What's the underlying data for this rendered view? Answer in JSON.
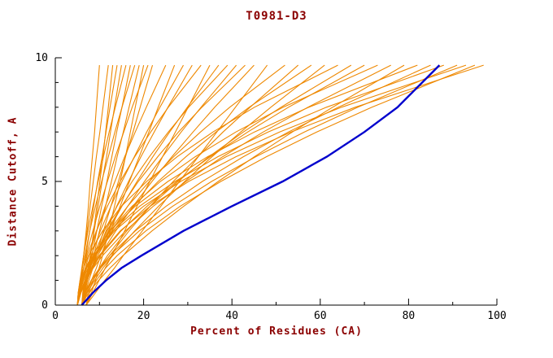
{
  "chart_data": {
    "type": "line",
    "title": "T0981-D3",
    "xlabel": "Percent of Residues (CA)",
    "ylabel": "Distance Cutoff, A",
    "xlim": [
      0,
      100
    ],
    "ylim": [
      0,
      10
    ],
    "x_major_ticks": [
      0,
      20,
      40,
      60,
      80,
      100
    ],
    "x_minor_tick_step": 10,
    "y_major_ticks": [
      0,
      5,
      10
    ],
    "y_minor_tick_step": 1,
    "grid": false,
    "legend": "none",
    "colors": {
      "curves": "#ee8800",
      "highlight": "#0000cd",
      "axis": "#000000",
      "tick_text": "#000000",
      "label_text": "#8b0000"
    },
    "y_grid": [
      0,
      0.5,
      1,
      1.5,
      2,
      3,
      4,
      5,
      6,
      7,
      8,
      9.7
    ],
    "orange_curves": [
      [
        5,
        5.5,
        5.8,
        6.1,
        6.4,
        7,
        7.5,
        7.9,
        8.4,
        8.9,
        9.3,
        10
      ],
      [
        5,
        5.4,
        5.7,
        6.1,
        6.4,
        7.2,
        7.9,
        8.6,
        9.3,
        10.1,
        10.8,
        12
      ],
      [
        6,
        6.7,
        7.1,
        7.6,
        8,
        8.7,
        9.4,
        10.1,
        10.8,
        11.4,
        12,
        13
      ],
      [
        5,
        5.5,
        5.9,
        6.4,
        6.9,
        7.8,
        8.7,
        9.6,
        10.6,
        11.5,
        12.4,
        14
      ],
      [
        6,
        6.5,
        6.9,
        7.4,
        7.9,
        8.8,
        9.7,
        10.6,
        11.6,
        12.5,
        13.4,
        15
      ],
      [
        5,
        5.2,
        5.6,
        6,
        6.4,
        7.4,
        8.5,
        9.7,
        10.9,
        12.2,
        13.6,
        16
      ],
      [
        6,
        6.6,
        7.1,
        7.7,
        8.3,
        9.4,
        10.5,
        11.7,
        12.8,
        13.9,
        15.1,
        17
      ],
      [
        5,
        5.3,
        5.7,
        6.1,
        6.7,
        7.8,
        9.1,
        10.5,
        12,
        13.5,
        15.1,
        18
      ],
      [
        6,
        6.7,
        7.3,
        8,
        8.7,
        10,
        11.4,
        12.7,
        14,
        15.4,
        16.7,
        19
      ],
      [
        7,
        8.2,
        9.1,
        9.9,
        10.7,
        12.1,
        13.4,
        14.7,
        15.9,
        17,
        18.1,
        20
      ],
      [
        5,
        5.3,
        5.8,
        6.4,
        7,
        8.5,
        10.1,
        11.8,
        13.6,
        15.5,
        17.4,
        21
      ],
      [
        6,
        6.8,
        7.6,
        8.5,
        9.3,
        10.9,
        12.6,
        14.3,
        15.9,
        17.6,
        19.2,
        22
      ],
      [
        5,
        5.4,
        6,
        6.8,
        7.6,
        9.4,
        11.3,
        13.5,
        15.7,
        18.1,
        20.6,
        25
      ],
      [
        6,
        7.1,
        8.2,
        9.3,
        10.3,
        12.5,
        14.7,
        16.8,
        19,
        21.2,
        23.3,
        27
      ],
      [
        5,
        5.5,
        6.2,
        7.1,
        8.1,
        10.2,
        12.6,
        15.1,
        17.9,
        20.7,
        23.7,
        29
      ],
      [
        6,
        6.5,
        7.3,
        8.2,
        9.2,
        11.5,
        13.9,
        16.6,
        19.4,
        22.4,
        25.5,
        31
      ],
      [
        5,
        5.3,
        5.7,
        6.4,
        7.2,
        9.3,
        11.8,
        14.7,
        18,
        21.6,
        25.6,
        33
      ],
      [
        7,
        8.5,
        9.9,
        11.3,
        12.8,
        15.7,
        18.5,
        21.4,
        24.3,
        27.2,
        30.1,
        35
      ],
      [
        5,
        5.7,
        6.7,
        7.8,
        9.1,
        12,
        15.1,
        18.5,
        22.1,
        25.9,
        29.9,
        37
      ],
      [
        6,
        6.3,
        6.9,
        7.7,
        8.6,
        11.1,
        14,
        17.4,
        21.3,
        25.6,
        30.2,
        39
      ],
      [
        5,
        5.8,
        6.9,
        8.2,
        9.6,
        12.8,
        16.4,
        20.2,
        24.3,
        28.5,
        33,
        41
      ],
      [
        6,
        6.3,
        7,
        7.9,
        9,
        11.7,
        15,
        18.8,
        23.2,
        27.9,
        33.2,
        43
      ],
      [
        5,
        5.8,
        7.1,
        8.5,
        10.1,
        13.7,
        17.6,
        21.9,
        26.4,
        31.2,
        36.1,
        45
      ],
      [
        7,
        9.1,
        11.2,
        13.4,
        15.4,
        19.7,
        23.9,
        28.1,
        32.4,
        36.6,
        40.8,
        48
      ],
      [
        5,
        5.4,
        6.2,
        7.4,
        8.8,
        12.2,
        16.4,
        21.3,
        26.8,
        32.9,
        39.5,
        52
      ],
      [
        6,
        7,
        8.5,
        10.3,
        12.3,
        16.7,
        21.5,
        26.7,
        32.3,
        38,
        44.1,
        55
      ],
      [
        5,
        5.5,
        6.4,
        7.7,
        9.2,
        13.1,
        17.8,
        23.3,
        29.6,
        36.4,
        43.9,
        58
      ],
      [
        6,
        7.2,
        8.9,
        10.8,
        13,
        18,
        23.4,
        29.3,
        35.5,
        42,
        48.8,
        61
      ],
      [
        5,
        5.2,
        5.6,
        6.4,
        7.5,
        10.7,
        15,
        20.7,
        27.6,
        35.7,
        45.1,
        64
      ],
      [
        7,
        7.5,
        8.6,
        10,
        11.8,
        16.2,
        21.5,
        27.8,
        34.8,
        42.6,
        51.1,
        67
      ],
      [
        5,
        5.6,
        6.7,
        8.3,
        10.2,
        14.9,
        20.8,
        27.5,
        35.1,
        43.6,
        52.8,
        70
      ],
      [
        6,
        6.2,
        6.7,
        7.6,
        8.9,
        12.4,
        17.4,
        23.8,
        31.7,
        40.9,
        51.6,
        73
      ],
      [
        5,
        5.6,
        6.8,
        8.6,
        10.7,
        15.9,
        22.2,
        29.6,
        37.9,
        47.1,
        57.2,
        76
      ],
      [
        6,
        7.5,
        9.8,
        12.4,
        15.3,
        21.9,
        29.1,
        36.9,
        45.1,
        53.7,
        62.8,
        79
      ],
      [
        5,
        5.2,
        5.8,
        6.8,
        8.3,
        12.4,
        18.1,
        25.5,
        34.5,
        45.1,
        57.4,
        82
      ],
      [
        6,
        6.7,
        8.1,
        10,
        12.3,
        18.1,
        25.1,
        33.3,
        42.6,
        52.8,
        64.1,
        85
      ],
      [
        5,
        5.2,
        5.9,
        7,
        8.6,
        13,
        19.1,
        27.1,
        36.8,
        48.2,
        61.4,
        88
      ],
      [
        6,
        6.8,
        8.2,
        10.3,
        12.8,
        19,
        26.6,
        35.4,
        45.4,
        56.4,
        68.5,
        91
      ],
      [
        5,
        5.3,
        6,
        7.1,
        8.8,
        13.4,
        20,
        28.4,
        38.7,
        50.8,
        64.8,
        93
      ],
      [
        7,
        7.8,
        9.3,
        11.4,
        14,
        20.5,
        28.3,
        37.5,
        47.8,
        59.2,
        71.7,
        95
      ],
      [
        6,
        6.3,
        7,
        8.2,
        9.9,
        14.7,
        21.5,
        30.2,
        40.9,
        53.4,
        67.9,
        97
      ]
    ],
    "highlight_curve": [
      6,
      8.5,
      11.5,
      15,
      19.5,
      29,
      40,
      51.5,
      61.5,
      70,
      77.5,
      87
    ]
  }
}
